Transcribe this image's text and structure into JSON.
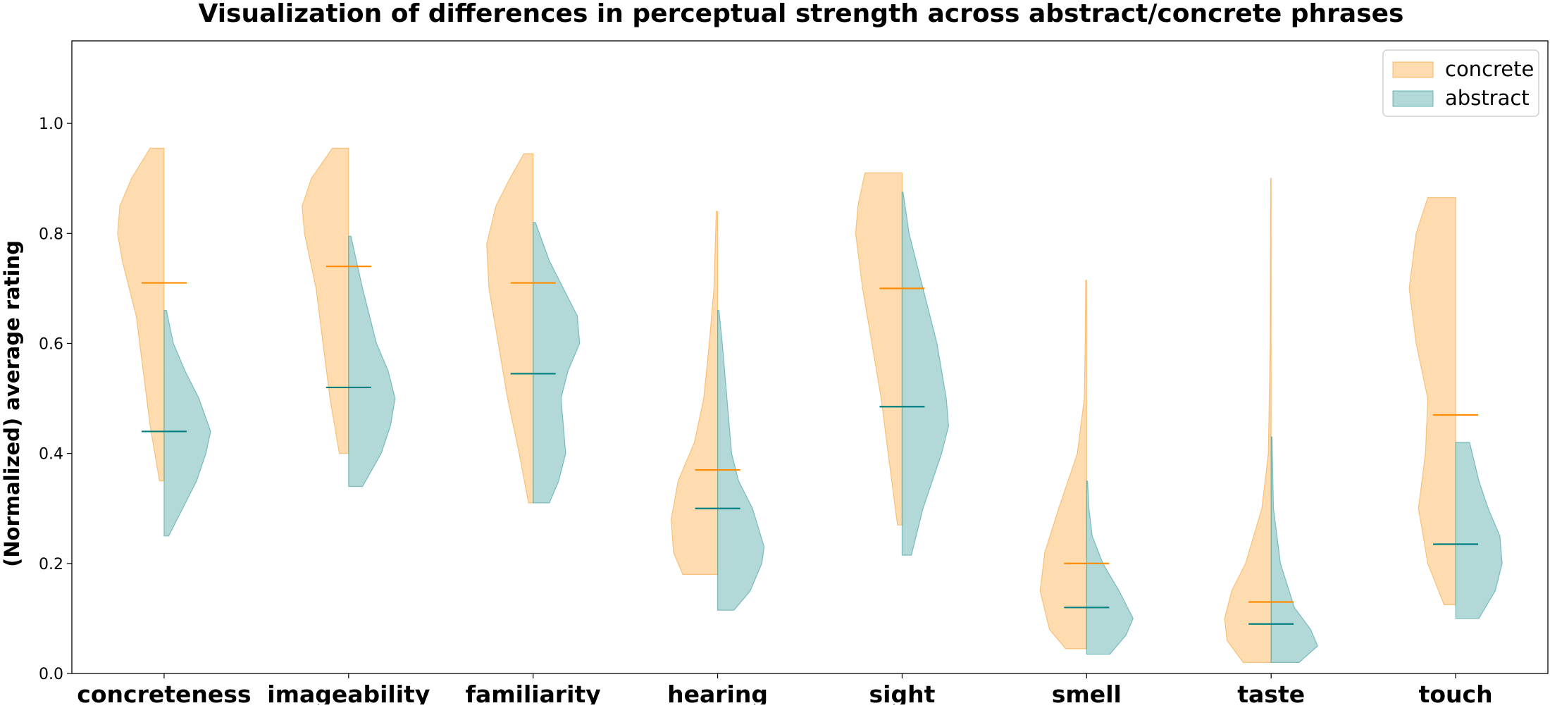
{
  "chart_data": {
    "type": "violin",
    "title": "Visualization of differences in perceptual strength across abstract/concrete phrases",
    "ylabel": "(Normalized) average rating",
    "xlabel": "",
    "ylim": [
      0,
      1.15
    ],
    "yticks": [
      0.0,
      0.2,
      0.4,
      0.6,
      0.8,
      1.0
    ],
    "ytick_labels": [
      "0.0",
      "0.2",
      "0.4",
      "0.6",
      "0.8",
      "1.0"
    ],
    "categories": [
      "concreteness",
      "imageability",
      "familiarity",
      "hearing",
      "sight",
      "smell",
      "taste",
      "touch"
    ],
    "legend_position": "top-right",
    "grid": false,
    "colors": {
      "concrete_fill": "#fdbf6f",
      "concrete_edge": "#f4a340",
      "concrete_median": "#ff8c00",
      "abstract_fill": "#66b2b2",
      "abstract_edge": "#3f9c9c",
      "abstract_median": "#008080"
    },
    "series": [
      {
        "name": "concrete",
        "side": "left",
        "min": [
          0.35,
          0.4,
          0.31,
          0.18,
          0.27,
          0.045,
          0.02,
          0.125
        ],
        "max": [
          0.955,
          0.955,
          0.945,
          0.84,
          0.91,
          0.715,
          0.9,
          0.865
        ],
        "median": [
          0.71,
          0.74,
          0.71,
          0.37,
          0.7,
          0.2,
          0.13,
          0.47
        ],
        "shape": [
          [
            [
              0.35,
              0.1
            ],
            [
              0.45,
              0.3
            ],
            [
              0.55,
              0.45
            ],
            [
              0.65,
              0.6
            ],
            [
              0.75,
              0.9
            ],
            [
              0.8,
              1.0
            ],
            [
              0.85,
              0.95
            ],
            [
              0.9,
              0.7
            ],
            [
              0.955,
              0.3
            ]
          ],
          [
            [
              0.4,
              0.2
            ],
            [
              0.5,
              0.4
            ],
            [
              0.6,
              0.55
            ],
            [
              0.7,
              0.7
            ],
            [
              0.8,
              0.95
            ],
            [
              0.85,
              1.0
            ],
            [
              0.9,
              0.8
            ],
            [
              0.955,
              0.35
            ]
          ],
          [
            [
              0.31,
              0.1
            ],
            [
              0.4,
              0.3
            ],
            [
              0.5,
              0.55
            ],
            [
              0.6,
              0.75
            ],
            [
              0.7,
              0.95
            ],
            [
              0.78,
              1.0
            ],
            [
              0.85,
              0.8
            ],
            [
              0.9,
              0.5
            ],
            [
              0.945,
              0.2
            ]
          ],
          [
            [
              0.18,
              0.75
            ],
            [
              0.22,
              0.95
            ],
            [
              0.28,
              1.0
            ],
            [
              0.35,
              0.85
            ],
            [
              0.42,
              0.5
            ],
            [
              0.5,
              0.3
            ],
            [
              0.6,
              0.18
            ],
            [
              0.7,
              0.08
            ],
            [
              0.84,
              0.03
            ]
          ],
          [
            [
              0.27,
              0.1
            ],
            [
              0.4,
              0.3
            ],
            [
              0.5,
              0.45
            ],
            [
              0.6,
              0.65
            ],
            [
              0.7,
              0.85
            ],
            [
              0.8,
              1.0
            ],
            [
              0.85,
              0.95
            ],
            [
              0.91,
              0.8
            ]
          ],
          [
            [
              0.045,
              0.45
            ],
            [
              0.08,
              0.8
            ],
            [
              0.15,
              1.0
            ],
            [
              0.22,
              0.9
            ],
            [
              0.3,
              0.6
            ],
            [
              0.4,
              0.2
            ],
            [
              0.5,
              0.05
            ],
            [
              0.6,
              0.03
            ],
            [
              0.715,
              0.02
            ]
          ],
          [
            [
              0.02,
              0.6
            ],
            [
              0.06,
              0.95
            ],
            [
              0.1,
              1.0
            ],
            [
              0.15,
              0.85
            ],
            [
              0.2,
              0.55
            ],
            [
              0.3,
              0.2
            ],
            [
              0.4,
              0.06
            ],
            [
              0.6,
              0.02
            ],
            [
              0.9,
              0.01
            ]
          ],
          [
            [
              0.125,
              0.25
            ],
            [
              0.2,
              0.6
            ],
            [
              0.3,
              0.8
            ],
            [
              0.4,
              0.65
            ],
            [
              0.5,
              0.6
            ],
            [
              0.6,
              0.85
            ],
            [
              0.7,
              1.0
            ],
            [
              0.8,
              0.85
            ],
            [
              0.865,
              0.6
            ]
          ]
        ]
      },
      {
        "name": "abstract",
        "side": "right",
        "min": [
          0.25,
          0.34,
          0.31,
          0.115,
          0.215,
          0.035,
          0.02,
          0.1
        ],
        "max": [
          0.66,
          0.795,
          0.82,
          0.66,
          0.875,
          0.35,
          0.43,
          0.42
        ],
        "median": [
          0.44,
          0.52,
          0.545,
          0.3,
          0.485,
          0.12,
          0.09,
          0.235
        ],
        "shape": [
          [
            [
              0.25,
              0.1
            ],
            [
              0.3,
              0.4
            ],
            [
              0.35,
              0.7
            ],
            [
              0.4,
              0.9
            ],
            [
              0.44,
              1.0
            ],
            [
              0.5,
              0.75
            ],
            [
              0.55,
              0.45
            ],
            [
              0.6,
              0.2
            ],
            [
              0.66,
              0.05
            ]
          ],
          [
            [
              0.34,
              0.3
            ],
            [
              0.4,
              0.7
            ],
            [
              0.45,
              0.9
            ],
            [
              0.5,
              1.0
            ],
            [
              0.55,
              0.85
            ],
            [
              0.6,
              0.6
            ],
            [
              0.65,
              0.45
            ],
            [
              0.7,
              0.3
            ],
            [
              0.795,
              0.05
            ]
          ],
          [
            [
              0.31,
              0.35
            ],
            [
              0.35,
              0.55
            ],
            [
              0.4,
              0.7
            ],
            [
              0.45,
              0.65
            ],
            [
              0.5,
              0.6
            ],
            [
              0.55,
              0.75
            ],
            [
              0.6,
              1.0
            ],
            [
              0.65,
              0.95
            ],
            [
              0.7,
              0.65
            ],
            [
              0.75,
              0.35
            ],
            [
              0.82,
              0.05
            ]
          ],
          [
            [
              0.115,
              0.35
            ],
            [
              0.15,
              0.7
            ],
            [
              0.2,
              0.95
            ],
            [
              0.23,
              1.0
            ],
            [
              0.3,
              0.75
            ],
            [
              0.35,
              0.45
            ],
            [
              0.4,
              0.3
            ],
            [
              0.5,
              0.2
            ],
            [
              0.6,
              0.1
            ],
            [
              0.66,
              0.03
            ]
          ],
          [
            [
              0.215,
              0.2
            ],
            [
              0.3,
              0.45
            ],
            [
              0.4,
              0.85
            ],
            [
              0.45,
              1.0
            ],
            [
              0.5,
              0.95
            ],
            [
              0.6,
              0.75
            ],
            [
              0.7,
              0.45
            ],
            [
              0.8,
              0.15
            ],
            [
              0.875,
              0.02
            ]
          ],
          [
            [
              0.035,
              0.5
            ],
            [
              0.07,
              0.85
            ],
            [
              0.1,
              1.0
            ],
            [
              0.15,
              0.7
            ],
            [
              0.2,
              0.35
            ],
            [
              0.25,
              0.12
            ],
            [
              0.3,
              0.05
            ],
            [
              0.35,
              0.02
            ]
          ],
          [
            [
              0.02,
              0.6
            ],
            [
              0.05,
              1.0
            ],
            [
              0.08,
              0.85
            ],
            [
              0.12,
              0.5
            ],
            [
              0.2,
              0.2
            ],
            [
              0.3,
              0.05
            ],
            [
              0.43,
              0.02
            ]
          ],
          [
            [
              0.1,
              0.5
            ],
            [
              0.15,
              0.85
            ],
            [
              0.2,
              1.0
            ],
            [
              0.25,
              0.95
            ],
            [
              0.3,
              0.7
            ],
            [
              0.35,
              0.5
            ],
            [
              0.42,
              0.3
            ]
          ]
        ]
      }
    ]
  }
}
